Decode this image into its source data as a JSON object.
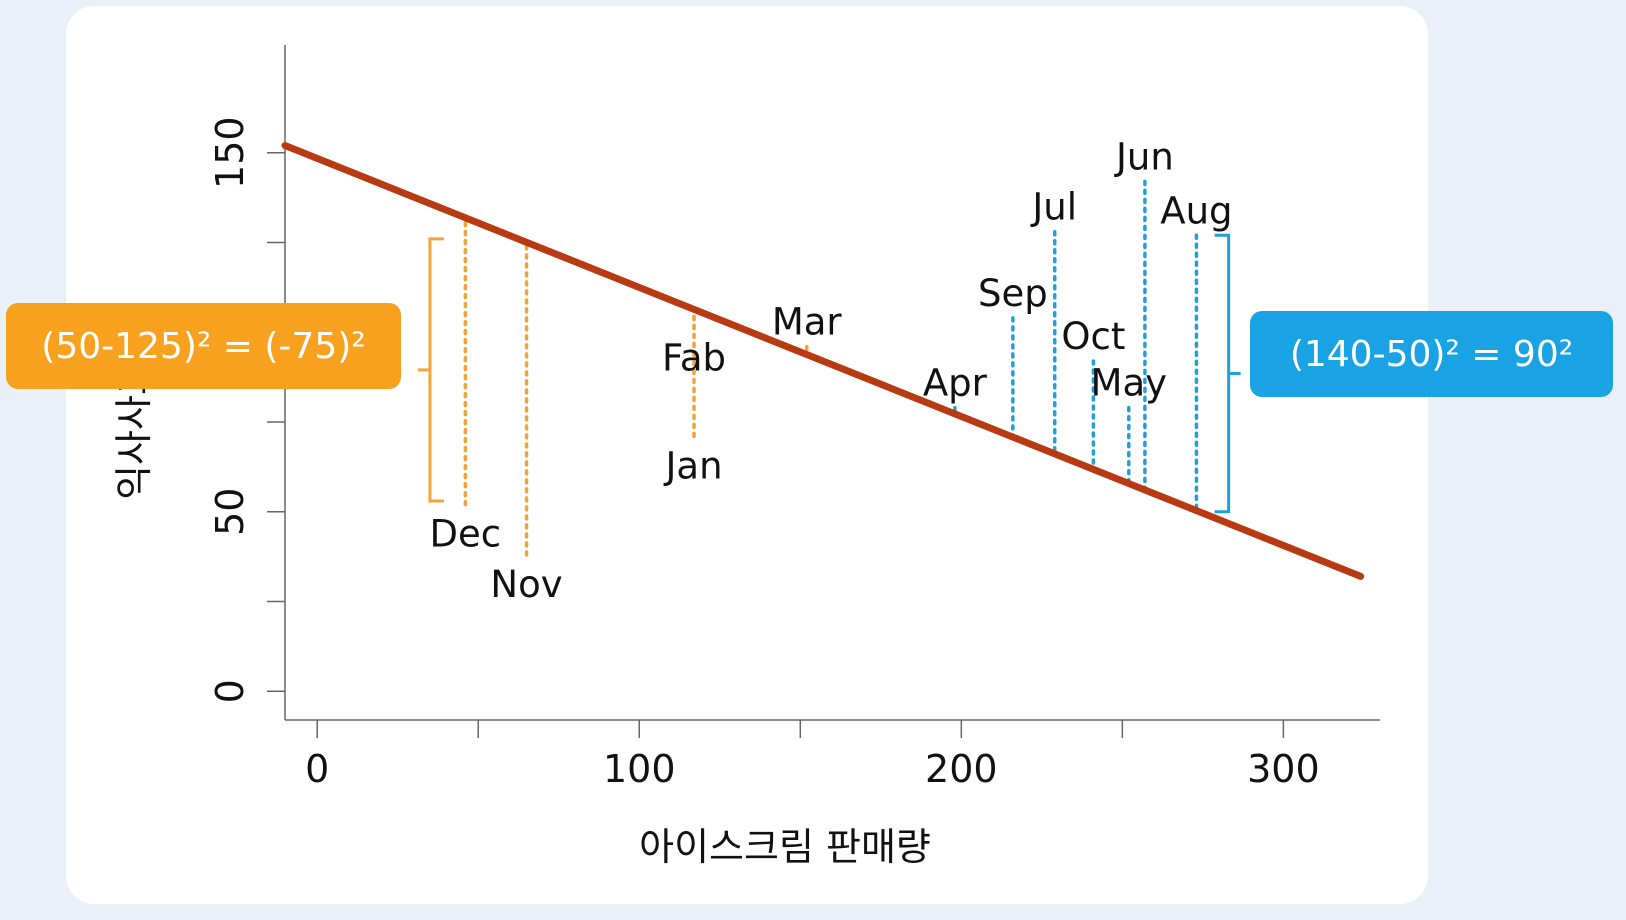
{
  "chart_data": {
    "type": "scatter",
    "xlabel": "아이스크림 판매량",
    "ylabel": "익사사고",
    "xlim": [
      -10,
      330
    ],
    "ylim": [
      -8,
      180
    ],
    "x_ticks": [
      0,
      50,
      100,
      150,
      200,
      250,
      300
    ],
    "x_tick_labels": [
      "0",
      "100",
      "200",
      "300"
    ],
    "x_tick_label_values": [
      0,
      100,
      200,
      300
    ],
    "y_ticks": [
      0,
      25,
      50,
      75,
      100,
      125,
      150
    ],
    "y_tick_labels": [
      "0",
      "50",
      "150"
    ],
    "y_tick_label_values": [
      0,
      50,
      150
    ],
    "regression_line": {
      "x": [
        -10,
        324
      ],
      "y": [
        152,
        32
      ],
      "color": "#b83a12"
    },
    "points": [
      {
        "label": "Dec",
        "x": 46,
        "y": 52,
        "group": "orange"
      },
      {
        "label": "Nov",
        "x": 65,
        "y": 38,
        "group": "orange"
      },
      {
        "label": "Jan",
        "x": 117,
        "y": 71,
        "group": "orange"
      },
      {
        "label": "Fab",
        "x": 117,
        "y": 101,
        "group": "orange"
      },
      {
        "label": "Mar",
        "x": 152,
        "y": 96,
        "group": "orange"
      },
      {
        "label": "Apr",
        "x": 198,
        "y": 79,
        "group": "blue"
      },
      {
        "label": "Sep",
        "x": 216,
        "y": 104,
        "group": "blue"
      },
      {
        "label": "Jul",
        "x": 229,
        "y": 128,
        "group": "blue"
      },
      {
        "label": "Oct",
        "x": 241,
        "y": 92,
        "group": "blue"
      },
      {
        "label": "May",
        "x": 252,
        "y": 79,
        "group": "blue"
      },
      {
        "label": "Jun",
        "x": 257,
        "y": 142,
        "group": "blue"
      },
      {
        "label": "Aug",
        "x": 273,
        "y": 127,
        "group": "blue"
      }
    ],
    "colors": {
      "orange": "#f2a33a",
      "blue": "#1f9fdb"
    },
    "brackets": [
      {
        "group": "orange",
        "x": 35,
        "y": [
          53,
          126
        ]
      },
      {
        "group": "blue",
        "x": 283,
        "y": [
          50,
          127
        ]
      }
    ]
  },
  "callouts": {
    "orange": {
      "text": "(50-125)² = (-75)²",
      "color": "#f7a11e"
    },
    "blue": {
      "text": "(140-50)² = 90²",
      "color": "#1aa3e4"
    }
  }
}
